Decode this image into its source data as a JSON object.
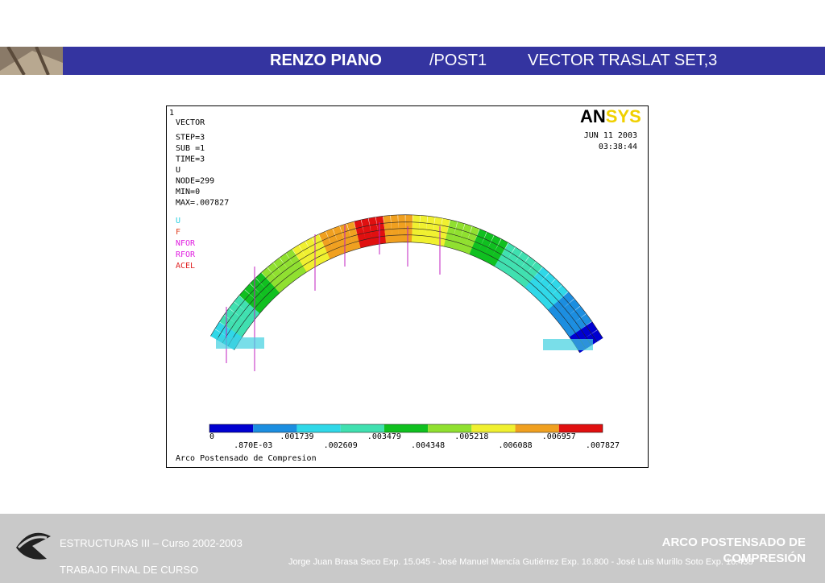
{
  "header": {
    "title": "RENZO PIANO",
    "command": "/POST1",
    "plot": "VECTOR TRASLAT  SET,3"
  },
  "plot": {
    "window": "1",
    "info": [
      "VECTOR",
      "STEP=3",
      "SUB =1",
      "TIME=3",
      "U",
      "NODE=299",
      "MIN=0",
      "MAX=.007827"
    ],
    "legend": [
      "U",
      "F",
      "NFOR",
      "RFOR",
      "ACEL"
    ],
    "logo": {
      "left": "AN",
      "right": "SYS"
    },
    "date": "JUN 11 2003",
    "time": "03:38:44",
    "scale": [
      "0",
      ".870E-03",
      ".001739",
      ".002609",
      ".003479",
      ".004348",
      ".005218",
      ".006088",
      ".006957",
      ".007827"
    ],
    "caption": "Arco Postensado de Compresion"
  },
  "footer": {
    "course": "ESTRUCTURAS III – Curso 2002-2003",
    "subtitle": "TRABAJO FINAL DE CURSO",
    "topic": "ARCO POSTENSADO DE COMPRESIÓN",
    "authors": "Jorge Juan Brasa Seco Exp. 15.045   -  José Manuel Mencía Gutiérrez Exp. 16.800 - José Luis Murillo Soto  Exp. 16.438"
  }
}
